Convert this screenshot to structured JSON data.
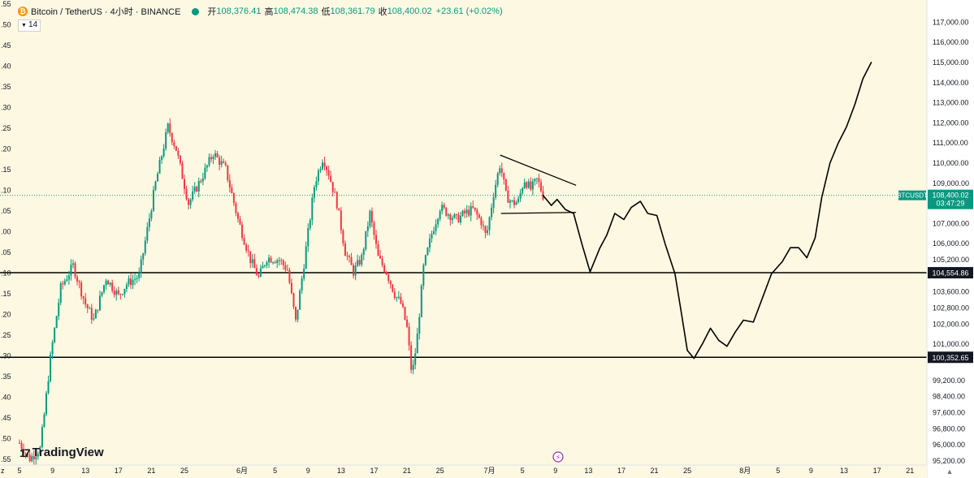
{
  "header": {
    "symbol": "Bitcoin / TetherUS · 4小时 · BINANCE",
    "open_label": "开",
    "open": "108,376.41",
    "high_label": "高",
    "high": "108,474.38",
    "low_label": "低",
    "low": "108,361.79",
    "close_label": "收",
    "close": "108,400.02",
    "change": "+23.61 (+0.02%)",
    "interval_count": "14",
    "logo_icon": "bitcoin-icon"
  },
  "brand": "TradingView",
  "colors": {
    "up": "#089981",
    "down": "#f23645",
    "background": "#fdf8e1",
    "line": "#000000"
  },
  "chart_data": {
    "type": "candlestick",
    "ylim": [
      95000,
      117300
    ],
    "y_ticks": [
      "117,000.00",
      "116,000.00",
      "115,000.00",
      "114,000.00",
      "113,000.00",
      "112,000.00",
      "111,000.00",
      "110,000.00",
      "109,000.00",
      "107,000.00",
      "106,000.00",
      "105,200.00",
      "103,600.00",
      "102,800.00",
      "102,000.00",
      "101,000.00",
      "99,200.00",
      "98,400.00",
      "97,600.00",
      "96,800.00",
      "96,000.00",
      "95,200.00"
    ],
    "y_tick_values": [
      117000,
      116000,
      115000,
      114000,
      113000,
      112000,
      111000,
      110000,
      109000,
      107000,
      106000,
      105200,
      103600,
      102800,
      102000,
      101000,
      99200,
      98400,
      97600,
      96800,
      96000,
      95200
    ],
    "left_ticks": [
      ".55",
      ".50",
      ".45",
      ".40",
      ".35",
      ".30",
      ".25",
      ".20",
      ".15",
      ".10",
      ".05",
      ".00",
      ".05",
      ".10",
      ".15",
      ".20",
      ".25",
      ".30",
      ".35",
      ".40",
      ".45",
      ".50",
      ".55"
    ],
    "x_ticks": [
      "5",
      "9",
      "13",
      "17",
      "21",
      "25",
      "6月",
      "5",
      "9",
      "13",
      "17",
      "21",
      "25",
      "7月",
      "5",
      "9",
      "13",
      "17",
      "21",
      "25",
      "8月",
      "5",
      "9",
      "13",
      "17",
      "21"
    ],
    "x_tick_index": [
      0,
      4,
      8,
      12,
      16,
      20,
      27,
      31,
      35,
      39,
      43,
      47,
      51,
      57,
      61,
      65,
      69,
      73,
      77,
      81,
      88,
      92,
      96,
      100,
      104,
      108
    ],
    "partial_left_tick": "z",
    "current_price": {
      "symbol": "BTCUSDT",
      "price": "108,400.02",
      "countdown": "03:47:29",
      "value": 108400
    },
    "levels": [
      {
        "label": "104,554.86",
        "value": 104554.86
      },
      {
        "label": "100,352.65",
        "value": 100352.65
      }
    ],
    "price_path": [
      {
        "day": 0,
        "price": 96100
      },
      {
        "day": 1.2,
        "price": 95300
      },
      {
        "day": 2.5,
        "price": 95800
      },
      {
        "day": 3,
        "price": 97500
      },
      {
        "day": 3.8,
        "price": 100500
      },
      {
        "day": 5,
        "price": 103800
      },
      {
        "day": 6.5,
        "price": 104900
      },
      {
        "day": 8,
        "price": 103000
      },
      {
        "day": 9,
        "price": 102200
      },
      {
        "day": 10.5,
        "price": 104300
      },
      {
        "day": 12,
        "price": 103400
      },
      {
        "day": 13,
        "price": 104000
      },
      {
        "day": 14.5,
        "price": 104400
      },
      {
        "day": 16.5,
        "price": 109000
      },
      {
        "day": 18,
        "price": 111800
      },
      {
        "day": 19,
        "price": 110700
      },
      {
        "day": 20.5,
        "price": 108000
      },
      {
        "day": 22,
        "price": 109200
      },
      {
        "day": 23.5,
        "price": 110500
      },
      {
        "day": 25,
        "price": 109700
      },
      {
        "day": 26.5,
        "price": 107200
      },
      {
        "day": 28,
        "price": 105200
      },
      {
        "day": 29,
        "price": 104300
      },
      {
        "day": 30,
        "price": 105300
      },
      {
        "day": 31.5,
        "price": 105200
      },
      {
        "day": 32.5,
        "price": 104700
      },
      {
        "day": 33.5,
        "price": 102100
      },
      {
        "day": 34.5,
        "price": 105000
      },
      {
        "day": 35.8,
        "price": 109000
      },
      {
        "day": 36.8,
        "price": 110300
      },
      {
        "day": 37.5,
        "price": 109500
      },
      {
        "day": 38.5,
        "price": 108000
      },
      {
        "day": 39.5,
        "price": 105600
      },
      {
        "day": 40.5,
        "price": 104600
      },
      {
        "day": 41.5,
        "price": 105300
      },
      {
        "day": 42.5,
        "price": 107500
      },
      {
        "day": 43.5,
        "price": 105300
      },
      {
        "day": 44.5,
        "price": 104600
      },
      {
        "day": 45.5,
        "price": 103500
      },
      {
        "day": 46.3,
        "price": 103000
      },
      {
        "day": 47,
        "price": 101800
      },
      {
        "day": 47.6,
        "price": 99400
      },
      {
        "day": 48.2,
        "price": 101200
      },
      {
        "day": 49,
        "price": 104800
      },
      {
        "day": 50,
        "price": 106500
      },
      {
        "day": 51,
        "price": 107800
      },
      {
        "day": 52,
        "price": 107500
      },
      {
        "day": 53,
        "price": 107200
      },
      {
        "day": 54,
        "price": 107500
      },
      {
        "day": 55,
        "price": 107700
      },
      {
        "day": 56,
        "price": 107100
      },
      {
        "day": 56.6,
        "price": 106300
      },
      {
        "day": 57.5,
        "price": 108500
      },
      {
        "day": 58.3,
        "price": 110000
      },
      {
        "day": 59,
        "price": 108400
      },
      {
        "day": 59.8,
        "price": 108000
      },
      {
        "day": 60.5,
        "price": 108100
      },
      {
        "day": 61.2,
        "price": 109200
      },
      {
        "day": 62,
        "price": 108700
      },
      {
        "day": 62.8,
        "price": 109200
      },
      {
        "day": 63.5,
        "price": 108400
      }
    ],
    "annotations": [
      "descending-triangle",
      "projected-path"
    ]
  }
}
